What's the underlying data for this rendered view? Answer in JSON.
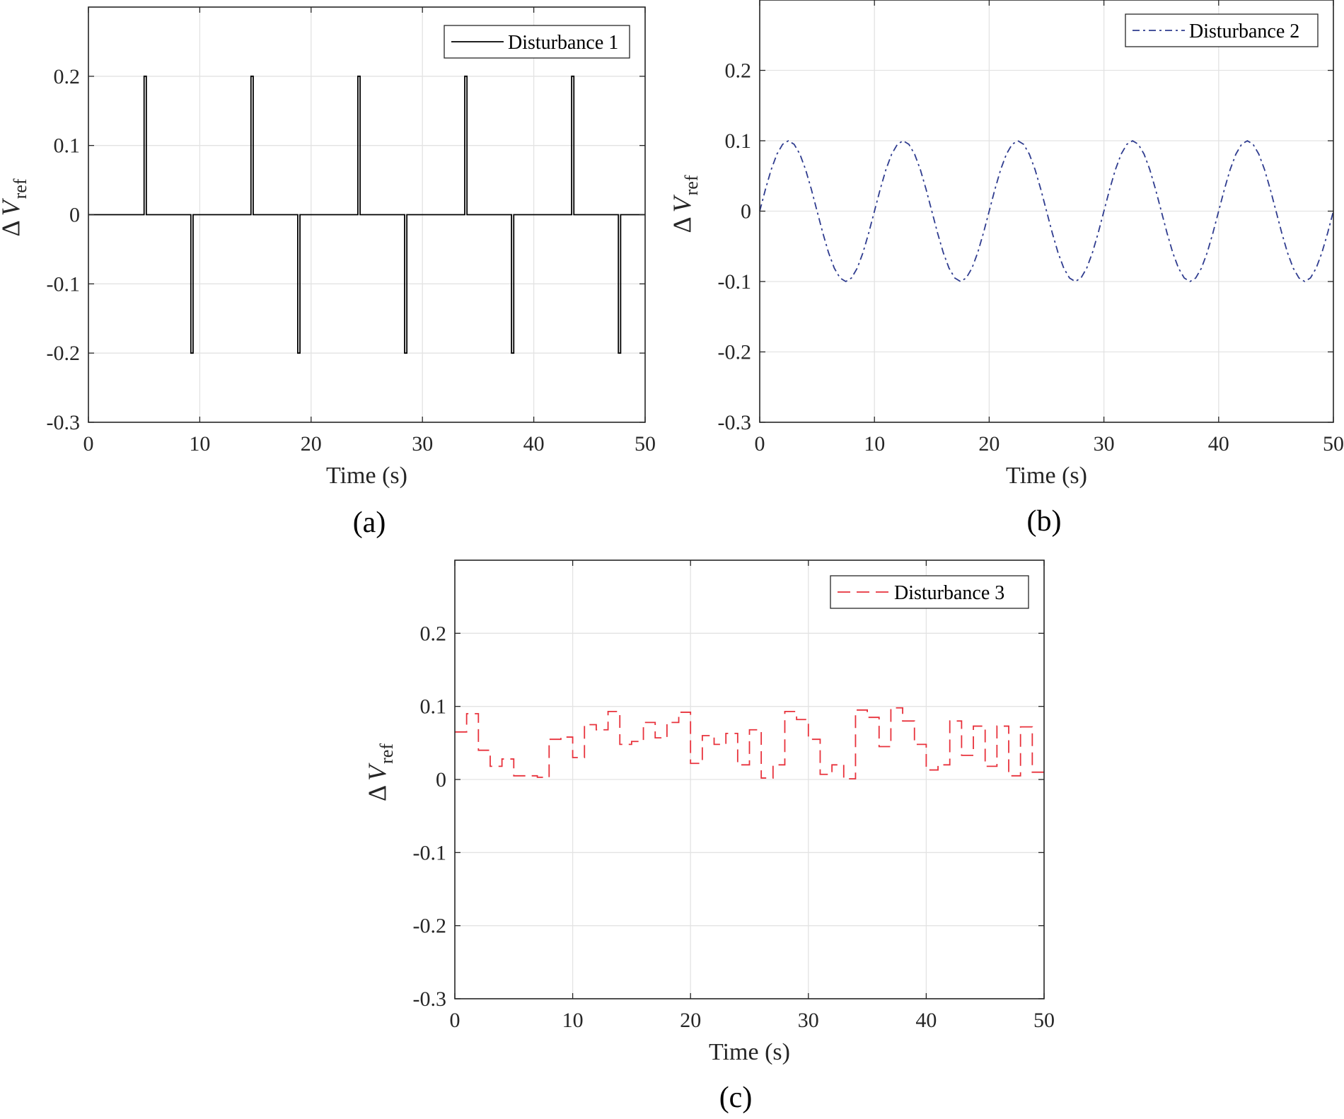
{
  "chart_data": [
    {
      "panel": "(a)",
      "type": "line",
      "xlabel": "Time (s)",
      "ylabel_symbol": "Δ",
      "ylabel_var": "V",
      "ylabel_sub": "ref",
      "xlim": [
        0,
        50
      ],
      "ylim": [
        -0.3,
        0.3
      ],
      "xticks": [
        "0",
        "10",
        "20",
        "30",
        "40",
        "50"
      ],
      "yticks": [
        "-0.3",
        "-0.2",
        "-0.1",
        "0",
        "0.1",
        "0.2"
      ],
      "grid": true,
      "legend_position": "top-right",
      "series": [
        {
          "name": "Disturbance 1",
          "color": "#000000",
          "style": "solid",
          "x": [
            0,
            5.0,
            5.0,
            5.2,
            5.2,
            9.2,
            9.2,
            9.4,
            9.4,
            14.6,
            14.6,
            14.8,
            14.8,
            18.8,
            18.8,
            19.0,
            19.0,
            24.2,
            24.2,
            24.4,
            24.4,
            28.4,
            28.4,
            28.6,
            28.6,
            33.8,
            33.8,
            34.0,
            34.0,
            38.0,
            38.0,
            38.2,
            38.2,
            43.4,
            43.4,
            43.6,
            43.6,
            47.6,
            47.6,
            47.8,
            47.8,
            50
          ],
          "y": [
            0,
            0,
            0.2,
            0.2,
            0,
            0,
            -0.2,
            -0.2,
            0,
            0,
            0.2,
            0.2,
            0,
            0,
            -0.2,
            -0.2,
            0,
            0,
            0.2,
            0.2,
            0,
            0,
            -0.2,
            -0.2,
            0,
            0,
            0.2,
            0.2,
            0,
            0,
            -0.2,
            -0.2,
            0,
            0,
            0.2,
            0.2,
            0,
            0,
            -0.2,
            -0.2,
            0,
            0
          ]
        }
      ]
    },
    {
      "panel": "(b)",
      "type": "line",
      "xlabel": "Time (s)",
      "ylabel_symbol": "Δ",
      "ylabel_var": "V",
      "ylabel_sub": "ref",
      "xlim": [
        0,
        50
      ],
      "ylim": [
        -0.3,
        0.3
      ],
      "xticks": [
        "0",
        "10",
        "20",
        "30",
        "40",
        "50"
      ],
      "yticks": [
        "-0.3",
        "-0.2",
        "-0.1",
        "0",
        "0.1",
        "0.2"
      ],
      "grid": true,
      "legend_position": "top-right",
      "series": [
        {
          "name": "Disturbance 2",
          "color": "#2f3c8f",
          "style": "dashdot",
          "x": [
            0,
            0.5,
            1,
            1.5,
            2,
            2.5,
            3,
            3.5,
            4,
            4.5,
            5,
            5.5,
            6,
            6.5,
            7,
            7.5,
            8,
            8.5,
            9,
            9.5,
            10,
            10.5,
            11,
            11.5,
            12,
            12.5,
            13,
            13.5,
            14,
            14.5,
            15,
            15.5,
            16,
            16.5,
            17,
            17.5,
            18,
            18.5,
            19,
            19.5,
            20,
            20.5,
            21,
            21.5,
            22,
            22.5,
            23,
            23.5,
            24,
            24.5,
            25,
            25.5,
            26,
            26.5,
            27,
            27.5,
            28,
            28.5,
            29,
            29.5,
            30,
            30.5,
            31,
            31.5,
            32,
            32.5,
            33,
            33.5,
            34,
            34.5,
            35,
            35.5,
            36,
            36.5,
            37,
            37.5,
            38,
            38.5,
            39,
            39.5,
            40,
            40.5,
            41,
            41.5,
            42,
            42.5,
            43,
            43.5,
            44,
            44.5,
            45,
            45.5,
            46,
            46.5,
            47,
            47.5,
            48,
            48.5,
            49,
            49.5,
            50
          ],
          "y": [
            0,
            0.031,
            0.059,
            0.081,
            0.095,
            0.1,
            0.095,
            0.081,
            0.059,
            0.031,
            0,
            -0.031,
            -0.059,
            -0.081,
            -0.095,
            -0.1,
            -0.095,
            -0.081,
            -0.059,
            -0.031,
            0,
            0.031,
            0.059,
            0.081,
            0.095,
            0.1,
            0.095,
            0.081,
            0.059,
            0.031,
            0,
            -0.031,
            -0.059,
            -0.081,
            -0.095,
            -0.1,
            -0.095,
            -0.081,
            -0.059,
            -0.031,
            0,
            0.031,
            0.059,
            0.081,
            0.095,
            0.1,
            0.095,
            0.081,
            0.059,
            0.031,
            0,
            -0.031,
            -0.059,
            -0.081,
            -0.095,
            -0.1,
            -0.095,
            -0.081,
            -0.059,
            -0.031,
            0,
            0.031,
            0.059,
            0.081,
            0.095,
            0.1,
            0.095,
            0.081,
            0.059,
            0.031,
            0,
            -0.031,
            -0.059,
            -0.081,
            -0.095,
            -0.1,
            -0.095,
            -0.081,
            -0.059,
            -0.031,
            0,
            0.031,
            0.059,
            0.081,
            0.095,
            0.1,
            0.095,
            0.081,
            0.059,
            0.031,
            0,
            -0.031,
            -0.059,
            -0.081,
            -0.095,
            -0.1,
            -0.095,
            -0.081,
            -0.059,
            -0.031,
            0
          ]
        }
      ]
    },
    {
      "panel": "(c)",
      "type": "line",
      "xlabel": "Time (s)",
      "ylabel_symbol": "Δ",
      "ylabel_var": "V",
      "ylabel_sub": "ref",
      "xlim": [
        0,
        50
      ],
      "ylim": [
        -0.3,
        0.3
      ],
      "xticks": [
        "0",
        "10",
        "20",
        "30",
        "40",
        "50"
      ],
      "yticks": [
        "-0.3",
        "-0.2",
        "-0.1",
        "0",
        "0.1",
        "0.2"
      ],
      "grid": true,
      "legend_position": "top-right",
      "series": [
        {
          "name": "Disturbance 3",
          "color": "#e8323c",
          "style": "dashed",
          "step": true,
          "x": [
            0,
            1,
            2,
            3,
            4,
            5,
            6,
            7,
            8,
            9,
            10,
            11,
            12,
            13,
            14,
            15,
            16,
            17,
            18,
            19,
            20,
            21,
            22,
            23,
            24,
            25,
            26,
            27,
            28,
            29,
            30,
            31,
            32,
            33,
            34,
            35,
            36,
            37,
            38,
            39,
            40,
            41,
            42,
            43,
            44,
            45,
            46,
            47,
            48,
            49
          ],
          "y": [
            0.065,
            0.09,
            0.04,
            0.018,
            0.028,
            0.005,
            0.005,
            0.003,
            0.055,
            0.058,
            0.03,
            0.075,
            0.068,
            0.093,
            0.048,
            0.052,
            0.078,
            0.057,
            0.078,
            0.092,
            0.022,
            0.06,
            0.048,
            0.063,
            0.02,
            0.068,
            0.002,
            0.02,
            0.093,
            0.082,
            0.055,
            0.007,
            0.02,
            0.001,
            0.095,
            0.085,
            0.045,
            0.098,
            0.08,
            0.048,
            0.013,
            0.02,
            0.08,
            0.033,
            0.073,
            0.018,
            0.073,
            0.005,
            0.072,
            0.01
          ]
        }
      ]
    }
  ]
}
